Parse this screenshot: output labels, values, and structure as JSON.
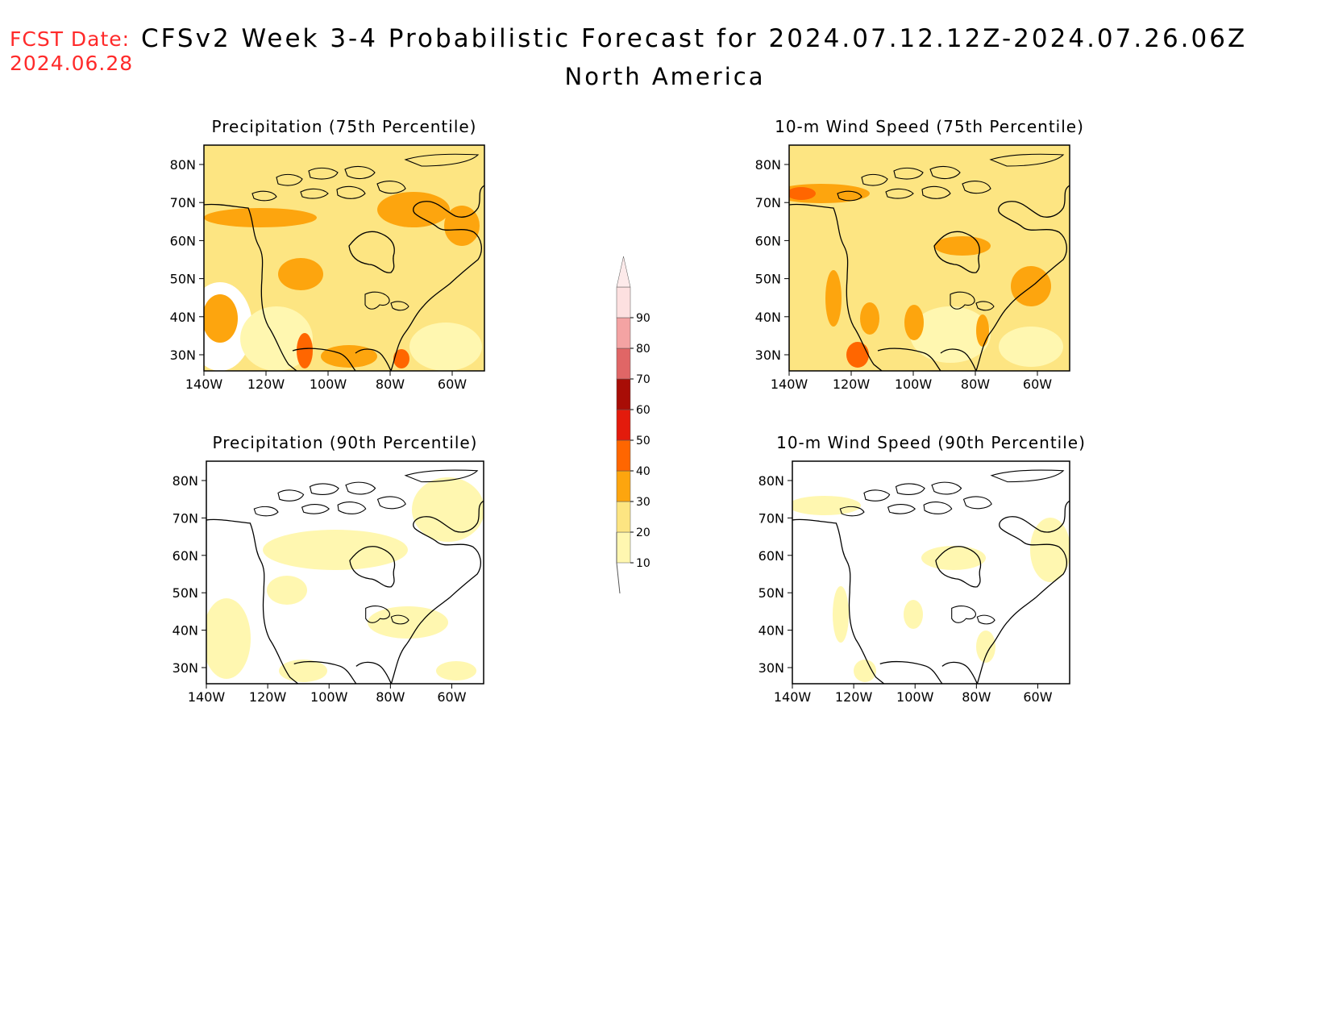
{
  "header": {
    "fcst_label": "FCST Date:",
    "fcst_date": "2024.06.28",
    "title": "CFSv2 Week 3-4 Probabilistic Forecast for 2024.07.12.12Z-2024.07.26.06Z",
    "subtitle": "North America"
  },
  "panels": [
    {
      "title": "Precipitation (75th Percentile)",
      "variable": "precipitation",
      "percentile": 75
    },
    {
      "title": "10-m Wind Speed (75th Percentile)",
      "variable": "wind",
      "percentile": 75
    },
    {
      "title": "Precipitation (90th Percentile)",
      "variable": "precipitation",
      "percentile": 90
    },
    {
      "title": "10-m Wind Speed (90th Percentile)",
      "variable": "wind",
      "percentile": 90
    }
  ],
  "axes": {
    "lat_ticks": [
      "80N",
      "70N",
      "60N",
      "50N",
      "40N",
      "30N"
    ],
    "lon_ticks": [
      "140W",
      "120W",
      "100W",
      "80W",
      "60W"
    ]
  },
  "colorbar": {
    "levels": [
      "10",
      "20",
      "30",
      "40",
      "50",
      "60",
      "70",
      "80",
      "90"
    ],
    "colors": [
      "#fff7b0",
      "#fde582",
      "#fda50e",
      "#ff6600",
      "#e31b0c",
      "#a80d06",
      "#e06666",
      "#f4a3a3",
      "#fde0e0"
    ]
  }
}
